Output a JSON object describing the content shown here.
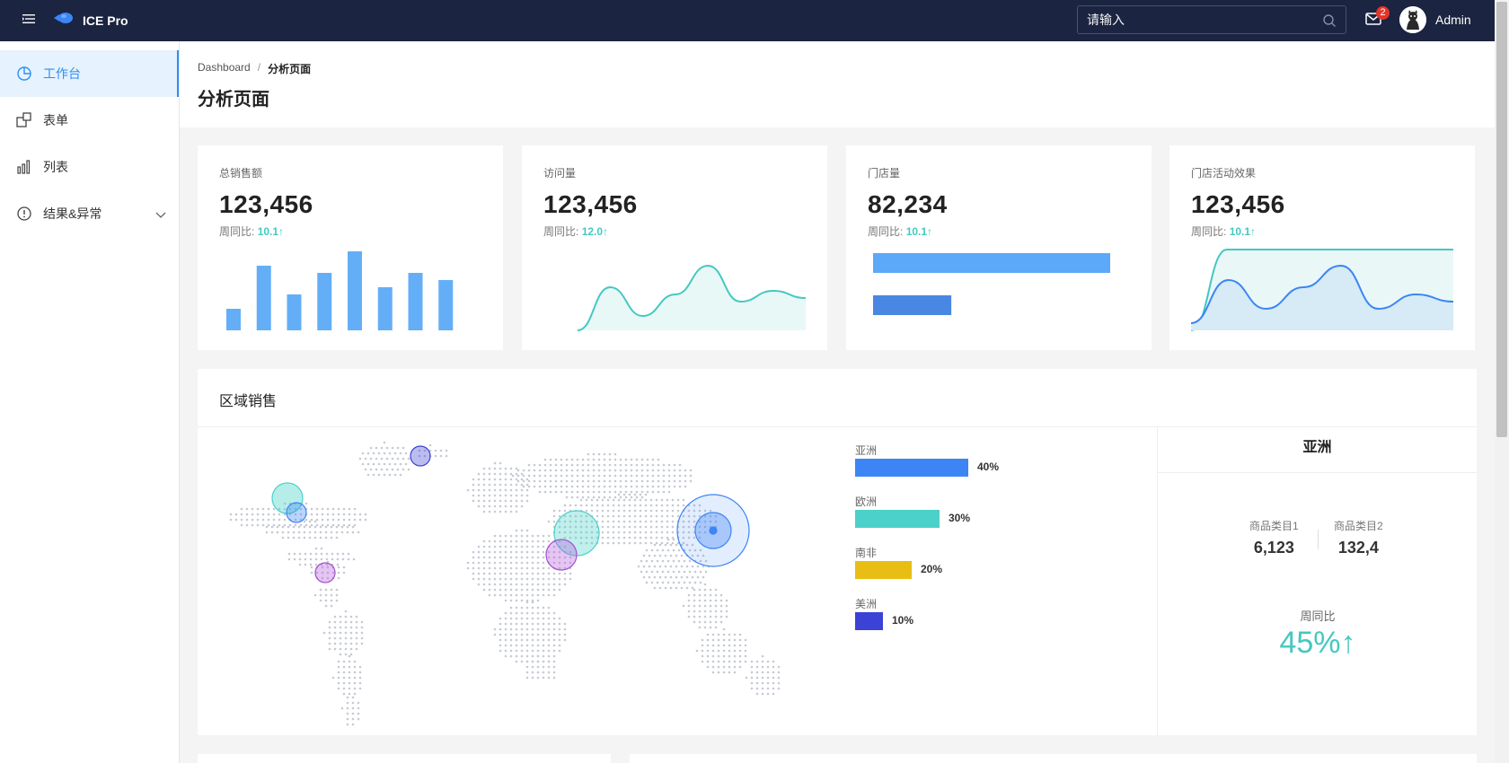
{
  "header": {
    "brand": "ICE Pro",
    "search_placeholder": "请输入",
    "mail_count": "2",
    "user_name": "Admin"
  },
  "sidebar": {
    "items": [
      {
        "label": "工作台",
        "icon": "dashboard-icon",
        "active": true
      },
      {
        "label": "表单",
        "icon": "form-icon",
        "active": false
      },
      {
        "label": "列表",
        "icon": "bar-chart-icon",
        "active": false
      },
      {
        "label": "结果&异常",
        "icon": "info-circle-icon",
        "active": false
      }
    ]
  },
  "breadcrumb": {
    "home": "Dashboard",
    "separator": "/",
    "current": "分析页面"
  },
  "page_title": "分析页面",
  "stats": [
    {
      "title": "总销售额",
      "value": "123,456",
      "sub_label": "周同比:",
      "sub_pct": "10.1↑"
    },
    {
      "title": "访问量",
      "value": "123,456",
      "sub_label": "周同比:",
      "sub_pct": "12.0↑"
    },
    {
      "title": "门店量",
      "value": "82,234",
      "sub_label": "周同比:",
      "sub_pct": "10.1↑"
    },
    {
      "title": "门店活动效果",
      "value": "123,456",
      "sub_label": "周同比:",
      "sub_pct": "10.1↑"
    }
  ],
  "region": {
    "title": "区域销售",
    "legend": [
      {
        "name": "亚洲",
        "value": "40%",
        "color": "#3d85f5"
      },
      {
        "name": "欧洲",
        "value": "30%",
        "color": "#4bd1c9"
      },
      {
        "name": "南非",
        "value": "20%",
        "color": "#e9be14"
      },
      {
        "name": "美洲",
        "value": "10%",
        "color": "#3c42d6"
      }
    ],
    "panel_title": "亚洲",
    "cat1_label": "商品类目1",
    "cat1_value": "6,123",
    "cat2_label": "商品类目2",
    "cat2_value": "132,4",
    "ratio_label": "周同比",
    "ratio_value": "45%↑"
  },
  "colors": {
    "accent": "#2c8ff5",
    "teal": "#44c8c0",
    "header_bg": "#1b2440"
  },
  "chart_data": [
    {
      "type": "bar",
      "values": [
        3,
        9,
        5,
        8,
        11,
        6,
        8,
        7
      ]
    },
    {
      "type": "area",
      "values": [
        0,
        6,
        2,
        5,
        9,
        4,
        5.5,
        4.5
      ]
    },
    {
      "type": "bar",
      "orientation": "horizontal",
      "values": [
        100,
        33
      ]
    },
    {
      "type": "area",
      "series": [
        {
          "values": [
            0,
            10,
            10,
            10,
            10,
            10,
            10
          ]
        },
        {
          "values": [
            1,
            7,
            3,
            6,
            9,
            3,
            5,
            4
          ]
        }
      ]
    }
  ]
}
